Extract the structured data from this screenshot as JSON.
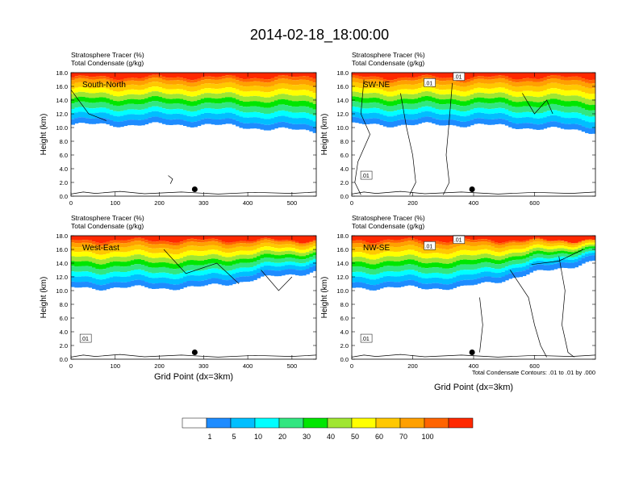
{
  "figure": {
    "title": "2014-02-18_18:00:00",
    "contour_note": "Total Condensate Contours: .01 to .01 by .000",
    "xlabel": "Grid Point (dx=3km)",
    "ylabel": "Height (km)"
  },
  "colorbar": {
    "labels": [
      "1",
      "5",
      "10",
      "20",
      "30",
      "40",
      "50",
      "60",
      "70",
      "100"
    ],
    "colors": [
      "#ffffff",
      "#1e8cff",
      "#00bfff",
      "#00ffff",
      "#32e680",
      "#00e600",
      "#a0e632",
      "#ffff00",
      "#ffc800",
      "#ffa000",
      "#ff6400",
      "#ff2800"
    ]
  },
  "chart_data": [
    {
      "type": "heatmap",
      "label": "South-North",
      "line1": "Stratosphere Tracer   (%)",
      "line2": "Total Condensate   (g/kg)",
      "xlim": [
        0,
        555
      ],
      "ylim": [
        0,
        18
      ],
      "xticks": [
        "0",
        "100",
        "200",
        "300",
        "400",
        "500"
      ],
      "yticks": [
        "0.0",
        "2.0",
        "4.0",
        "6.0",
        "8.0",
        "10.0",
        "12.0",
        "14.0",
        "16.0",
        "18.0"
      ],
      "marker": {
        "x": 280,
        "y": 1.0
      },
      "contour_labels": []
    },
    {
      "type": "heatmap",
      "label": "SW-NE",
      "line1": "Stratosphere Tracer   (%)",
      "line2": "Total Condensate   (g/kg)",
      "xlim": [
        0,
        800
      ],
      "ylim": [
        0,
        18
      ],
      "xticks": [
        "0",
        "200",
        "400",
        "600"
      ],
      "yticks": [
        "0.0",
        "2.0",
        "4.0",
        "6.0",
        "8.0",
        "10.0",
        "12.0",
        "14.0",
        "16.0",
        "18.0"
      ],
      "marker": {
        "x": 395,
        "y": 1.0
      },
      "contour_labels": [
        ".01",
        ".01",
        ".01"
      ]
    },
    {
      "type": "heatmap",
      "label": "West-East",
      "line1": "Stratosphere Tracer   (%)",
      "line2": "Total Condensate   (g/kg)",
      "xlim": [
        0,
        555
      ],
      "ylim": [
        0,
        18
      ],
      "xticks": [
        "0",
        "100",
        "200",
        "300",
        "400",
        "500"
      ],
      "yticks": [
        "0.0",
        "2.0",
        "4.0",
        "6.0",
        "8.0",
        "10.0",
        "12.0",
        "14.0",
        "16.0",
        "18.0"
      ],
      "marker": {
        "x": 280,
        "y": 1.0
      },
      "contour_labels": [
        ".01"
      ]
    },
    {
      "type": "heatmap",
      "label": "NW-SE",
      "line1": "Stratosphere Tracer   (%)",
      "line2": "Total Condensate   (g/kg)",
      "xlim": [
        0,
        800
      ],
      "ylim": [
        0,
        18
      ],
      "xticks": [
        "0",
        "200",
        "400",
        "600"
      ],
      "yticks": [
        "0.0",
        "2.0",
        "4.0",
        "6.0",
        "8.0",
        "10.0",
        "12.0",
        "14.0",
        "16.0",
        "18.0"
      ],
      "marker": {
        "x": 395,
        "y": 1.0
      },
      "contour_labels": [
        ".01",
        ".01",
        ".01"
      ]
    }
  ]
}
